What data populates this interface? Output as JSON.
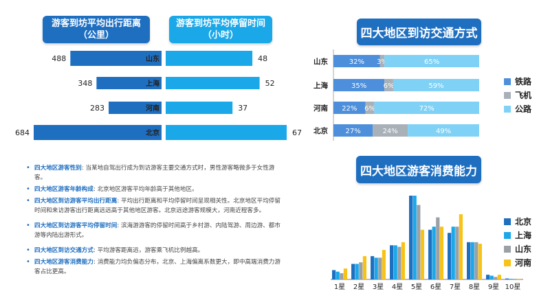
{
  "headers": {
    "distance": [
      "游客到坊平均出行距离",
      "（公里）"
    ],
    "stay": [
      "游客到坊平均停留时间",
      "（小时）"
    ],
    "mode": "四大地区到访交通方式",
    "spend": "四大地区游客消费能力"
  },
  "colors": {
    "dark_blue": "#1f6fc1",
    "light_blue": "#1ba8e8",
    "rail": "#4d8fdb",
    "air": "#a8b0b8",
    "road": "#7fd1f5",
    "gold": "#f7c318",
    "gray": "#9aa0a6"
  },
  "notes": [
    {
      "key": "四大地区游客性别",
      "text": ": 当某地自驾出行成为到访游客主要交通方式时，男性游客略微多于女性游客。"
    },
    {
      "key": "四大地区游客年龄构成",
      "text": ": 北京地区游客平均年龄高于其他地区。"
    },
    {
      "key": "四大地区到访游客平均出行距离",
      "text": ": 平均出行距离和平均停留时间呈现相关性。北京地区平均停留时间和来访游客出行距离远远高于其他地区游客。北京远途游客规模大，河南近程客多。"
    },
    {
      "key": "四大地区到访游客平均停留时间",
      "text": ": 滨海游游客的停留时间高于乡村游、内陆驾游、周边游、都市游等内陆出游形式。"
    },
    {
      "key": "四大地区到访交通方式",
      "text": ": 平均游客距离远，游客乘飞机比例越高。"
    },
    {
      "key": "四大地区游客消费能力",
      "text": ": 消费能力均负偏态分布，北京、上海偏离系数更大，即中高端消费力游客占比更高。"
    }
  ],
  "chart_data": [
    {
      "type": "bar",
      "title": "游客到坊平均出行距离（公里）",
      "orientation": "horizontal",
      "categories": [
        "山东",
        "上海",
        "河南",
        "北京"
      ],
      "values": [
        488,
        348,
        283,
        684
      ]
    },
    {
      "type": "bar",
      "title": "游客到坊平均停留时间（小时）",
      "orientation": "horizontal",
      "categories": [
        "山东",
        "上海",
        "河南",
        "北京"
      ],
      "values": [
        48,
        52,
        37,
        67
      ]
    },
    {
      "type": "bar",
      "stacked": true,
      "orientation": "horizontal",
      "title": "四大地区到访交通方式",
      "categories": [
        "山东",
        "上海",
        "河南",
        "北京"
      ],
      "series": [
        {
          "name": "铁路",
          "values": [
            32,
            35,
            22,
            27
          ],
          "labels": [
            "32%",
            "35%",
            "22%",
            "27%"
          ]
        },
        {
          "name": "飞机",
          "values": [
            3,
            6,
            6,
            24
          ],
          "labels": [
            "3%",
            "6%",
            "6%",
            "24%"
          ]
        },
        {
          "name": "公路",
          "values": [
            65,
            59,
            72,
            49
          ],
          "labels": [
            "65%",
            "59%",
            "72%",
            "49%"
          ]
        }
      ],
      "legend": "right"
    },
    {
      "type": "bar",
      "title": "四大地区游客消费能力",
      "categories": [
        "1星",
        "2星",
        "3星",
        "4星",
        "5星",
        "6星",
        "7星",
        "8星",
        "9星",
        "10星"
      ],
      "series": [
        {
          "name": "北京",
          "values": [
            3,
            5,
            7.5,
            11,
            27,
            16,
            15,
            12,
            1.5,
            0.3
          ]
        },
        {
          "name": "上海",
          "values": [
            2.5,
            5,
            7,
            11,
            27,
            17,
            17,
            12,
            1.2,
            0.2
          ]
        },
        {
          "name": "山东",
          "values": [
            2,
            5.5,
            7,
            10.5,
            24,
            20,
            17,
            12,
            0.8,
            0.2
          ]
        },
        {
          "name": "河南",
          "values": [
            3.5,
            7.5,
            9.5,
            12,
            16,
            17,
            21,
            11.5,
            1.5,
            0.2
          ]
        }
      ],
      "legend": "right",
      "ylim": [
        0,
        30
      ]
    }
  ],
  "legend_spend": [
    "北京",
    "上海",
    "山东",
    "河南"
  ],
  "legend_mode": [
    "铁路",
    "飞机",
    "公路"
  ]
}
